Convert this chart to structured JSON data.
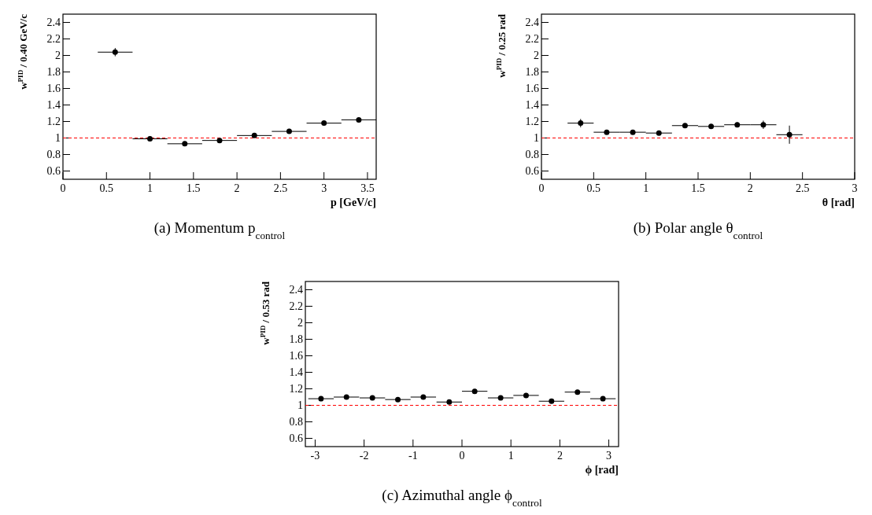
{
  "chart_data": [
    {
      "type": "scatter",
      "title": "(a) Momentum p$_{control}$",
      "xlabel": "p [GeV/c]",
      "ylabel": "w$^{PID}$ / 0.40 GeV/c",
      "x": [
        0.6,
        1.0,
        1.4,
        1.8,
        2.2,
        2.6,
        3.0,
        3.4
      ],
      "values": [
        2.04,
        0.99,
        0.93,
        0.97,
        1.03,
        1.08,
        1.18,
        1.22
      ],
      "errors": [
        0.05,
        null,
        null,
        null,
        null,
        null,
        null,
        0.02
      ],
      "xerrors": [
        0.2,
        0.2,
        0.2,
        0.2,
        0.2,
        0.2,
        0.2,
        0.2
      ],
      "color": "#000000",
      "marker": "circle",
      "xlim": [
        0,
        3.6
      ],
      "ylim": [
        0.5,
        2.5
      ],
      "xticks": [
        0,
        0.5,
        1,
        1.5,
        2,
        2.5,
        3,
        3.5
      ],
      "yticks": [
        0.6,
        0.8,
        1,
        1.2,
        1.4,
        1.6,
        1.8,
        2,
        2.2,
        2.4
      ],
      "ref_lines": [
        {
          "axis": "y",
          "value": 1,
          "color": "#ff0000",
          "line_style": "dashed"
        }
      ]
    },
    {
      "type": "scatter",
      "title": "(b) Polar angle θ$_{control}$",
      "xlabel": "θ [rad]",
      "ylabel": "w$^{PID}$ / 0.25 rad",
      "x": [
        0.375,
        0.625,
        0.875,
        1.125,
        1.375,
        1.625,
        1.875,
        2.125,
        2.375
      ],
      "values": [
        1.18,
        1.07,
        1.07,
        1.06,
        1.15,
        1.14,
        1.16,
        1.16,
        1.04
      ],
      "errors": [
        0.05,
        null,
        null,
        null,
        null,
        null,
        0.03,
        0.05,
        0.11
      ],
      "xerrors": [
        0.125,
        0.125,
        0.125,
        0.125,
        0.125,
        0.125,
        0.125,
        0.125,
        0.125
      ],
      "color": "#000000",
      "marker": "circle",
      "xlim": [
        0,
        3
      ],
      "ylim": [
        0.5,
        2.5
      ],
      "xticks": [
        0,
        0.5,
        1,
        1.5,
        2,
        2.5,
        3
      ],
      "yticks": [
        0.6,
        0.8,
        1,
        1.2,
        1.4,
        1.6,
        1.8,
        2,
        2.2,
        2.4
      ],
      "ref_lines": [
        {
          "axis": "y",
          "value": 1,
          "color": "#ff0000",
          "line_style": "dashed"
        }
      ]
    },
    {
      "type": "scatter",
      "title": "(c) Azimuthal angle ϕ$_{control}$",
      "xlabel": "ϕ [rad]",
      "ylabel": "w$^{PID}$ / 0.53 rad",
      "x": [
        -2.88,
        -2.36,
        -1.83,
        -1.31,
        -0.79,
        -0.26,
        0.26,
        0.79,
        1.31,
        1.83,
        2.36,
        2.88
      ],
      "values": [
        1.08,
        1.1,
        1.09,
        1.07,
        1.1,
        1.04,
        1.17,
        1.09,
        1.12,
        1.05,
        1.16,
        1.08
      ],
      "xerrors": [
        0.26,
        0.26,
        0.26,
        0.26,
        0.26,
        0.26,
        0.26,
        0.26,
        0.26,
        0.26,
        0.26,
        0.26
      ],
      "color": "#000000",
      "marker": "circle",
      "xlim": [
        -3.2,
        3.2
      ],
      "ylim": [
        0.5,
        2.5
      ],
      "xticks": [
        -3,
        -2,
        -1,
        0,
        1,
        2,
        3
      ],
      "yticks": [
        0.6,
        0.8,
        1,
        1.2,
        1.4,
        1.6,
        1.8,
        2,
        2.2,
        2.4
      ],
      "ref_lines": [
        {
          "axis": "y",
          "value": 1,
          "color": "#ff0000",
          "line_style": "dashed"
        }
      ]
    }
  ]
}
